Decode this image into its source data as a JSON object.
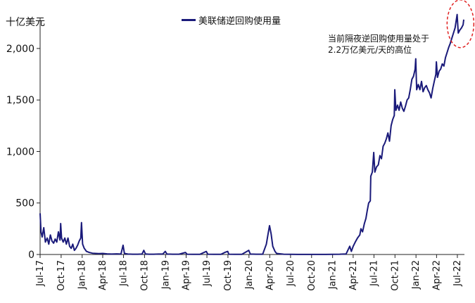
{
  "chart_data": {
    "type": "line",
    "ylabel": "十亿美元",
    "ylim": [
      0,
      2300
    ],
    "yticks": [
      0,
      500,
      1000,
      1500,
      2000
    ],
    "ytick_labels": [
      "0",
      "500",
      "1,000",
      "1,500",
      "2,000"
    ],
    "xlim": [
      "2017-07-01",
      "2022-08-01"
    ],
    "xticks": [
      "2017-07-01",
      "2017-10-01",
      "2018-01-01",
      "2018-04-01",
      "2018-07-01",
      "2018-10-01",
      "2019-01-01",
      "2019-04-01",
      "2019-07-01",
      "2019-10-01",
      "2020-01-01",
      "2020-04-01",
      "2020-07-01",
      "2020-10-01",
      "2021-01-01",
      "2021-04-01",
      "2021-07-01",
      "2021-10-01",
      "2022-01-01",
      "2022-04-01",
      "2022-07-01"
    ],
    "xtick_labels": [
      "Jul-17",
      "Oct-17",
      "Jan-18",
      "Apr-18",
      "Jul-18",
      "Oct-18",
      "Jan-19",
      "Apr-19",
      "Jul-19",
      "Oct-19",
      "Jan-20",
      "Apr-20",
      "Jul-20",
      "Oct-20",
      "Jan-21",
      "Apr-21",
      "Jul-21",
      "Oct-21",
      "Jan-22",
      "Apr-22",
      "Jul-22"
    ],
    "grid": false,
    "legend_position": "top-center",
    "annotation": [
      "当前隔夜逆回购使用量处于",
      "2.2万亿美元/天的高位"
    ],
    "highlight_marker": {
      "shape": "dashed-ellipse",
      "color": "#e02020"
    },
    "series": [
      {
        "name": "美联储逆回购使用量",
        "color": "#1a1a7a",
        "points": [
          [
            "2017-07-01",
            400
          ],
          [
            "2017-07-05",
            220
          ],
          [
            "2017-07-10",
            170
          ],
          [
            "2017-07-17",
            260
          ],
          [
            "2017-07-24",
            120
          ],
          [
            "2017-08-01",
            160
          ],
          [
            "2017-08-08",
            100
          ],
          [
            "2017-08-15",
            190
          ],
          [
            "2017-08-22",
            130
          ],
          [
            "2017-08-29",
            110
          ],
          [
            "2017-09-05",
            150
          ],
          [
            "2017-09-12",
            120
          ],
          [
            "2017-09-19",
            220
          ],
          [
            "2017-09-26",
            140
          ],
          [
            "2017-09-29",
            300
          ],
          [
            "2017-10-03",
            160
          ],
          [
            "2017-10-10",
            120
          ],
          [
            "2017-10-17",
            160
          ],
          [
            "2017-10-24",
            100
          ],
          [
            "2017-10-31",
            160
          ],
          [
            "2017-11-07",
            80
          ],
          [
            "2017-11-14",
            60
          ],
          [
            "2017-11-21",
            100
          ],
          [
            "2017-11-28",
            40
          ],
          [
            "2017-12-05",
            60
          ],
          [
            "2017-12-12",
            90
          ],
          [
            "2017-12-19",
            130
          ],
          [
            "2017-12-26",
            160
          ],
          [
            "2017-12-29",
            310
          ],
          [
            "2018-01-03",
            100
          ],
          [
            "2018-01-10",
            60
          ],
          [
            "2018-01-20",
            30
          ],
          [
            "2018-02-01",
            20
          ],
          [
            "2018-02-15",
            12
          ],
          [
            "2018-03-01",
            10
          ],
          [
            "2018-03-15",
            8
          ],
          [
            "2018-04-01",
            10
          ],
          [
            "2018-04-20",
            6
          ],
          [
            "2018-05-10",
            4
          ],
          [
            "2018-06-01",
            6
          ],
          [
            "2018-06-20",
            4
          ],
          [
            "2018-06-29",
            90
          ],
          [
            "2018-07-05",
            10
          ],
          [
            "2018-07-20",
            4
          ],
          [
            "2018-08-10",
            3
          ],
          [
            "2018-09-01",
            3
          ],
          [
            "2018-09-20",
            4
          ],
          [
            "2018-09-28",
            40
          ],
          [
            "2018-10-05",
            5
          ],
          [
            "2018-10-20",
            3
          ],
          [
            "2018-11-10",
            3
          ],
          [
            "2018-12-01",
            4
          ],
          [
            "2018-12-20",
            5
          ],
          [
            "2018-12-31",
            30
          ],
          [
            "2019-01-07",
            4
          ],
          [
            "2019-02-01",
            3
          ],
          [
            "2019-03-01",
            3
          ],
          [
            "2019-03-29",
            20
          ],
          [
            "2019-04-05",
            3
          ],
          [
            "2019-05-01",
            2
          ],
          [
            "2019-06-01",
            2
          ],
          [
            "2019-06-28",
            30
          ],
          [
            "2019-07-05",
            3
          ],
          [
            "2019-08-01",
            2
          ],
          [
            "2019-09-01",
            2
          ],
          [
            "2019-09-17",
            20
          ],
          [
            "2019-09-30",
            30
          ],
          [
            "2019-10-05",
            3
          ],
          [
            "2019-11-01",
            2
          ],
          [
            "2019-12-01",
            2
          ],
          [
            "2019-12-31",
            40
          ],
          [
            "2020-01-07",
            4
          ],
          [
            "2020-02-01",
            3
          ],
          [
            "2020-03-01",
            3
          ],
          [
            "2020-03-17",
            100
          ],
          [
            "2020-03-24",
            190
          ],
          [
            "2020-03-31",
            280
          ],
          [
            "2020-04-07",
            200
          ],
          [
            "2020-04-14",
            80
          ],
          [
            "2020-04-24",
            30
          ],
          [
            "2020-05-01",
            10
          ],
          [
            "2020-06-01",
            3
          ],
          [
            "2020-07-01",
            2
          ],
          [
            "2020-08-01",
            1
          ],
          [
            "2020-09-01",
            1
          ],
          [
            "2020-10-01",
            1
          ],
          [
            "2020-11-01",
            1
          ],
          [
            "2020-12-01",
            1
          ],
          [
            "2021-01-01",
            2
          ],
          [
            "2021-02-01",
            3
          ],
          [
            "2021-03-01",
            5
          ],
          [
            "2021-03-17",
            80
          ],
          [
            "2021-03-24",
            30
          ],
          [
            "2021-04-01",
            80
          ],
          [
            "2021-04-10",
            120
          ],
          [
            "2021-04-20",
            160
          ],
          [
            "2021-04-30",
            190
          ],
          [
            "2021-05-05",
            250
          ],
          [
            "2021-05-12",
            220
          ],
          [
            "2021-05-20",
            300
          ],
          [
            "2021-05-27",
            350
          ],
          [
            "2021-06-01",
            420
          ],
          [
            "2021-06-08",
            500
          ],
          [
            "2021-06-15",
            520
          ],
          [
            "2021-06-17",
            760
          ],
          [
            "2021-06-24",
            800
          ],
          [
            "2021-06-30",
            990
          ],
          [
            "2021-07-05",
            800
          ],
          [
            "2021-07-12",
            850
          ],
          [
            "2021-07-20",
            870
          ],
          [
            "2021-07-27",
            960
          ],
          [
            "2021-08-03",
            930
          ],
          [
            "2021-08-10",
            1050
          ],
          [
            "2021-08-17",
            1080
          ],
          [
            "2021-08-24",
            1120
          ],
          [
            "2021-08-31",
            1180
          ],
          [
            "2021-09-07",
            1100
          ],
          [
            "2021-09-14",
            1250
          ],
          [
            "2021-09-21",
            1310
          ],
          [
            "2021-09-28",
            1350
          ],
          [
            "2021-09-30",
            1600
          ],
          [
            "2021-10-05",
            1400
          ],
          [
            "2021-10-12",
            1450
          ],
          [
            "2021-10-19",
            1400
          ],
          [
            "2021-10-26",
            1480
          ],
          [
            "2021-11-02",
            1420
          ],
          [
            "2021-11-09",
            1390
          ],
          [
            "2021-11-16",
            1440
          ],
          [
            "2021-11-23",
            1500
          ],
          [
            "2021-11-30",
            1520
          ],
          [
            "2021-12-07",
            1600
          ],
          [
            "2021-12-14",
            1700
          ],
          [
            "2021-12-21",
            1730
          ],
          [
            "2021-12-28",
            1800
          ],
          [
            "2021-12-31",
            1900
          ],
          [
            "2022-01-04",
            1600
          ],
          [
            "2022-01-11",
            1650
          ],
          [
            "2022-01-18",
            1600
          ],
          [
            "2022-01-25",
            1680
          ],
          [
            "2022-02-01",
            1580
          ],
          [
            "2022-02-08",
            1620
          ],
          [
            "2022-02-15",
            1640
          ],
          [
            "2022-02-22",
            1600
          ],
          [
            "2022-03-01",
            1570
          ],
          [
            "2022-03-08",
            1520
          ],
          [
            "2022-03-15",
            1610
          ],
          [
            "2022-03-22",
            1680
          ],
          [
            "2022-03-29",
            1750
          ],
          [
            "2022-03-31",
            1870
          ],
          [
            "2022-04-05",
            1720
          ],
          [
            "2022-04-12",
            1780
          ],
          [
            "2022-04-19",
            1800
          ],
          [
            "2022-04-26",
            1850
          ],
          [
            "2022-05-03",
            1830
          ],
          [
            "2022-05-10",
            1910
          ],
          [
            "2022-05-17",
            1960
          ],
          [
            "2022-05-24",
            2010
          ],
          [
            "2022-05-31",
            2050
          ],
          [
            "2022-06-07",
            2100
          ],
          [
            "2022-06-14",
            2150
          ],
          [
            "2022-06-21",
            2200
          ],
          [
            "2022-06-30",
            2330
          ],
          [
            "2022-07-05",
            2150
          ],
          [
            "2022-07-12",
            2180
          ],
          [
            "2022-07-19",
            2200
          ],
          [
            "2022-07-26",
            2230
          ],
          [
            "2022-07-29",
            2280
          ]
        ]
      }
    ]
  }
}
